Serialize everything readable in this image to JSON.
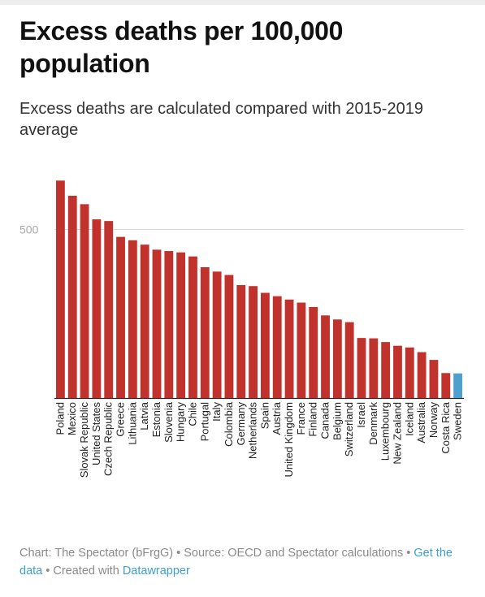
{
  "header": {
    "title": "Excess deaths per 100,000 population",
    "subtitle": "Excess deaths are calculated compared with 2015-2019 average"
  },
  "footer": {
    "chart_credit": "Chart: The Spectator (bFrgG)",
    "separator": " • ",
    "source": "Source: OECD and Spectator calculations",
    "get_data": "Get the data",
    "created_with": "Created with",
    "datawrapper": "Datawrapper"
  },
  "colors": {
    "bar": "#c0322b",
    "highlight": "#4f9fcf",
    "gridline": "#dddddd",
    "baseline": "#222222"
  },
  "chart_data": {
    "type": "bar",
    "title": "Excess deaths per 100,000 population",
    "subtitle": "Excess deaths are calculated compared with 2015-2019 average",
    "xlabel": "",
    "ylabel": "",
    "ylim": [
      0,
      650
    ],
    "yticks": [
      500
    ],
    "grid": true,
    "highlight_category": "Sweden",
    "categories": [
      "Poland",
      "Mexico",
      "Slovak Republic",
      "United States",
      "Czech Republic",
      "Greece",
      "Lithuania",
      "Latvia",
      "Estonia",
      "Slovenia",
      "Hungary",
      "Chile",
      "Portugal",
      "Italy",
      "Colombia",
      "Germany",
      "Netherlands",
      "Spain",
      "Austria",
      "United Kingdom",
      "France",
      "Finland",
      "Canada",
      "Belgium",
      "Switzerland",
      "Israel",
      "Denmark",
      "Luxembourg",
      "New Zealand",
      "Iceland",
      "Australia",
      "Norway",
      "Costa Rica",
      "Sweden"
    ],
    "values": [
      645,
      600,
      575,
      530,
      525,
      478,
      468,
      455,
      440,
      436,
      432,
      420,
      388,
      375,
      365,
      335,
      332,
      312,
      302,
      292,
      283,
      270,
      245,
      233,
      225,
      178,
      177,
      166,
      155,
      150,
      136,
      113,
      74,
      73
    ]
  }
}
